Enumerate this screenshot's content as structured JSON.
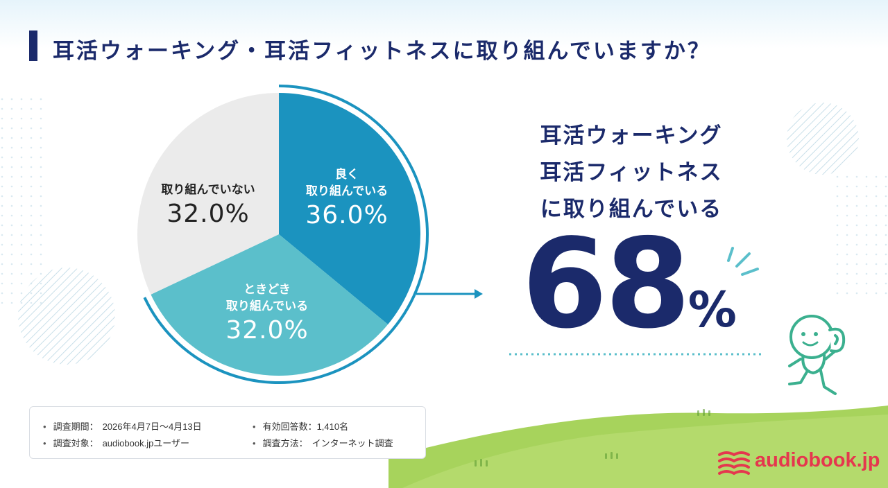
{
  "title": "耳活ウォーキング・耳活フィットネスに取り組んでいますか？",
  "chart_data": {
    "type": "pie",
    "categories": [
      "良く取り組んでいる",
      "ときどき取り組んでいる",
      "取り組んでいない"
    ],
    "values": [
      36.0,
      32.0,
      32.0
    ],
    "labels": [
      {
        "line1": "良く",
        "line2": "取り組んでいる",
        "pct": "36.0%"
      },
      {
        "line1": "ときどき",
        "line2": "取り組んでいる",
        "pct": "32.0%"
      },
      {
        "line1": "取り組んでいない",
        "line2": "",
        "pct": "32.0%"
      }
    ],
    "colors": [
      "#1b93bf",
      "#5bbfcb",
      "#ebebeb"
    ],
    "unit": "%"
  },
  "highlight": {
    "line1": "耳活ウォーキング",
    "line2": "耳活フィットネス",
    "line3": "に取り組んでいる",
    "value": "68",
    "unit": "%"
  },
  "survey": {
    "period_label": "調査期間：",
    "period_value": "2026年4月7日〜4月13日",
    "target_label": "調査対象：",
    "target_value": "audiobook.jpユーザー",
    "responses": "有効回答数：1,410名",
    "method_label": "調査方法：",
    "method_value": "インターネット調査"
  },
  "brand": {
    "name": "audiobook.jp",
    "color": "#e5374e"
  },
  "colors": {
    "navy": "#1b2a6b",
    "teal_dark": "#1b93bf",
    "teal_light": "#5bbfcb",
    "gray": "#ebebeb",
    "green": "#a7d35c",
    "mascot": "#3bb08f"
  }
}
